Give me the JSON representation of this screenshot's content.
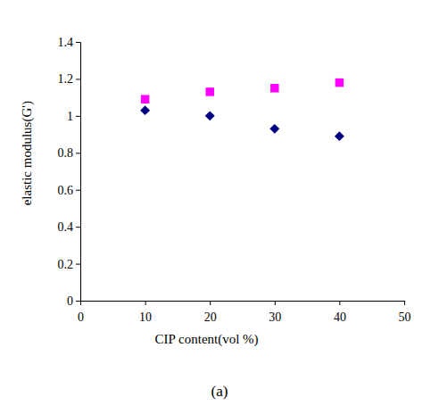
{
  "chart_data": {
    "type": "scatter",
    "x_label": "CIP content(vol %)",
    "y_label": "elastic modulus(G')",
    "caption": "(a)",
    "x": [
      10,
      20,
      30,
      40
    ],
    "series": [
      {
        "color": "#ff00ff",
        "marker": "square",
        "values": [
          1.09,
          1.13,
          1.15,
          1.18
        ]
      },
      {
        "color": "#000080",
        "marker": "diamond",
        "values": [
          1.03,
          1.0,
          0.93,
          0.89
        ]
      }
    ],
    "xlim": [
      0,
      50
    ],
    "xticks": [
      0,
      10,
      20,
      30,
      40,
      50
    ],
    "ylim": [
      0,
      1.4
    ],
    "yticks": [
      0,
      0.2,
      0.4,
      0.6,
      0.8,
      1,
      1.2,
      1.4
    ],
    "grid": false
  }
}
